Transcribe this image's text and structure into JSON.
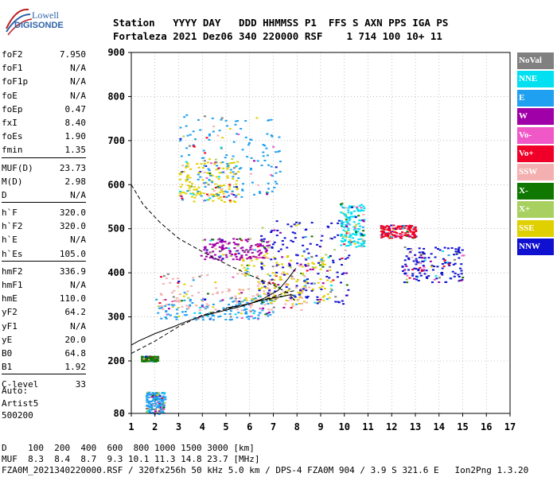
{
  "logo": {
    "line1": "Lowell",
    "line2": "DIGISONDE"
  },
  "header": {
    "line1": "Station   YYYY DAY   DDD HHMMSS P1  FFS S AXN PPS IGA PS",
    "line2": "Fortaleza 2021 Dez06 340 220000 RSF    1 714 100 10+ 11"
  },
  "params": [
    [
      {
        "k": "foF2",
        "v": "7.950"
      },
      {
        "k": "foF1",
        "v": "N/A"
      },
      {
        "k": "foF1p",
        "v": "N/A"
      },
      {
        "k": "foE",
        "v": "N/A"
      },
      {
        "k": "foEp",
        "v": "0.47"
      },
      {
        "k": "fxI",
        "v": "8.40"
      },
      {
        "k": "foEs",
        "v": "1.90"
      },
      {
        "k": "fmin",
        "v": "1.35"
      }
    ],
    [
      {
        "k": "MUF(D)",
        "v": "23.73"
      },
      {
        "k": "M(D)",
        "v": "2.98"
      },
      {
        "k": "D",
        "v": "N/A"
      }
    ],
    [
      {
        "k": "h`F",
        "v": "320.0"
      },
      {
        "k": "h`F2",
        "v": "320.0"
      },
      {
        "k": "h`E",
        "v": "N/A"
      },
      {
        "k": "h`Es",
        "v": "105.0"
      }
    ],
    [
      {
        "k": "hmF2",
        "v": "336.9"
      },
      {
        "k": "hmF1",
        "v": "N/A"
      },
      {
        "k": "hmE",
        "v": "110.0"
      },
      {
        "k": "yF2",
        "v": "64.2"
      },
      {
        "k": "yF1",
        "v": "N/A"
      },
      {
        "k": "yE",
        "v": "20.0"
      },
      {
        "k": "B0",
        "v": "64.8"
      },
      {
        "k": "B1",
        "v": "1.92"
      }
    ],
    [
      {
        "k": "C-level",
        "v": "33"
      }
    ]
  ],
  "auto": {
    "line1": "Auto:",
    "line2": "Artist5",
    "line3": "500200"
  },
  "legend": [
    {
      "label": "NoVal",
      "color": "#808080"
    },
    {
      "label": "NNE",
      "color": "#00e0f0"
    },
    {
      "label": "E",
      "color": "#20a0f0"
    },
    {
      "label": "W",
      "color": "#a000a8"
    },
    {
      "label": "Vo-",
      "color": "#f058c8"
    },
    {
      "label": "Vo+",
      "color": "#f00028"
    },
    {
      "label": "SSW",
      "color": "#f4b0b0"
    },
    {
      "label": "X-",
      "color": "#107800"
    },
    {
      "label": "X+",
      "color": "#a8d060"
    },
    {
      "label": "SSE",
      "color": "#e0d000"
    },
    {
      "label": "NNW",
      "color": "#1010d0"
    }
  ],
  "footer": {
    "line1": "D    100  200  400  600  800 1000 1500 3000 [km]",
    "line2": "MUF  8.3  8.4  8.7  9.3 10.1 11.3 14.8 23.7 [MHz]",
    "line3": "FZA0M_2021340220000.RSF / 320fx256h 50 kHz 5.0 km / DPS-4 FZA0M 904 / 3.9 S 321.6 E   Ion2Png 1.3.20"
  },
  "chart_data": {
    "type": "scatter",
    "title": "",
    "xlabel": "",
    "ylabel": "",
    "xlim": [
      1,
      17
    ],
    "ylim": [
      80,
      900
    ],
    "xticks": [
      1,
      2,
      3,
      4,
      5,
      6,
      7,
      8,
      9,
      10,
      11,
      12,
      13,
      14,
      15,
      16,
      17
    ],
    "yticks": [
      80,
      200,
      300,
      400,
      500,
      600,
      700,
      800,
      900
    ],
    "grid": "dotted",
    "legend_position": "right",
    "clusters": [
      {
        "series": "E",
        "x": [
          1.6,
          2.4
        ],
        "y": [
          80,
          130
        ]
      },
      {
        "series": "X-",
        "x": [
          1.4,
          2.1
        ],
        "y": [
          200,
          212
        ]
      },
      {
        "series": "E",
        "x": [
          2.0,
          7.0
        ],
        "y": [
          295,
          345
        ]
      },
      {
        "series": "SSW",
        "x": [
          2.2,
          8.5
        ],
        "y": [
          315,
          400
        ]
      },
      {
        "series": "SSE",
        "x": [
          5.5,
          9.5
        ],
        "y": [
          330,
          440
        ]
      },
      {
        "series": "NNW",
        "x": [
          6.4,
          10.2
        ],
        "y": [
          330,
          520
        ]
      },
      {
        "series": "W",
        "x": [
          3.9,
          6.8
        ],
        "y": [
          430,
          480
        ]
      },
      {
        "series": "SSE",
        "x": [
          3.0,
          5.5
        ],
        "y": [
          560,
          660
        ]
      },
      {
        "series": "E",
        "x": [
          3.0,
          7.3
        ],
        "y": [
          570,
          760
        ]
      },
      {
        "series": "NNE",
        "x": [
          9.8,
          10.8
        ],
        "y": [
          460,
          560
        ]
      },
      {
        "series": "NNW",
        "x": [
          12.4,
          15.0
        ],
        "y": [
          380,
          460
        ]
      },
      {
        "series": "Vo+",
        "x": [
          11.5,
          13.0
        ],
        "y": [
          480,
          510
        ]
      }
    ],
    "curves": [
      {
        "name": "profile",
        "x": [
          1.0,
          1.3,
          2.0,
          2.8,
          3.3,
          4.0,
          4.6,
          5.2,
          5.6,
          6.0,
          6.4,
          6.9,
          7.35,
          7.7,
          7.9
        ],
        "y": [
          236,
          245,
          262,
          278,
          289,
          302,
          310,
          318,
          323,
          330,
          336,
          342,
          346,
          350,
          337
        ],
        "style": "solid"
      },
      {
        "name": "profile-F",
        "x": [
          5.0,
          6.0,
          6.6,
          7.2,
          7.6,
          7.95
        ],
        "y": [
          320,
          330,
          342,
          360,
          385,
          410
        ],
        "style": "solid"
      },
      {
        "name": "trace-upper",
        "x": [
          1.0,
          1.5,
          2.2,
          3.0,
          4.0,
          5.0,
          6.0,
          7.0,
          7.95
        ],
        "y": [
          600,
          555,
          515,
          478,
          448,
          420,
          395,
          372,
          345
        ],
        "style": "dashed"
      },
      {
        "name": "trace-lower",
        "x": [
          1.0,
          2.0,
          3.0,
          4.0,
          5.0,
          6.0,
          7.0,
          7.5,
          7.95
        ],
        "y": [
          217,
          245,
          278,
          304,
          318,
          330,
          345,
          355,
          360
        ],
        "style": "dashed"
      }
    ]
  }
}
